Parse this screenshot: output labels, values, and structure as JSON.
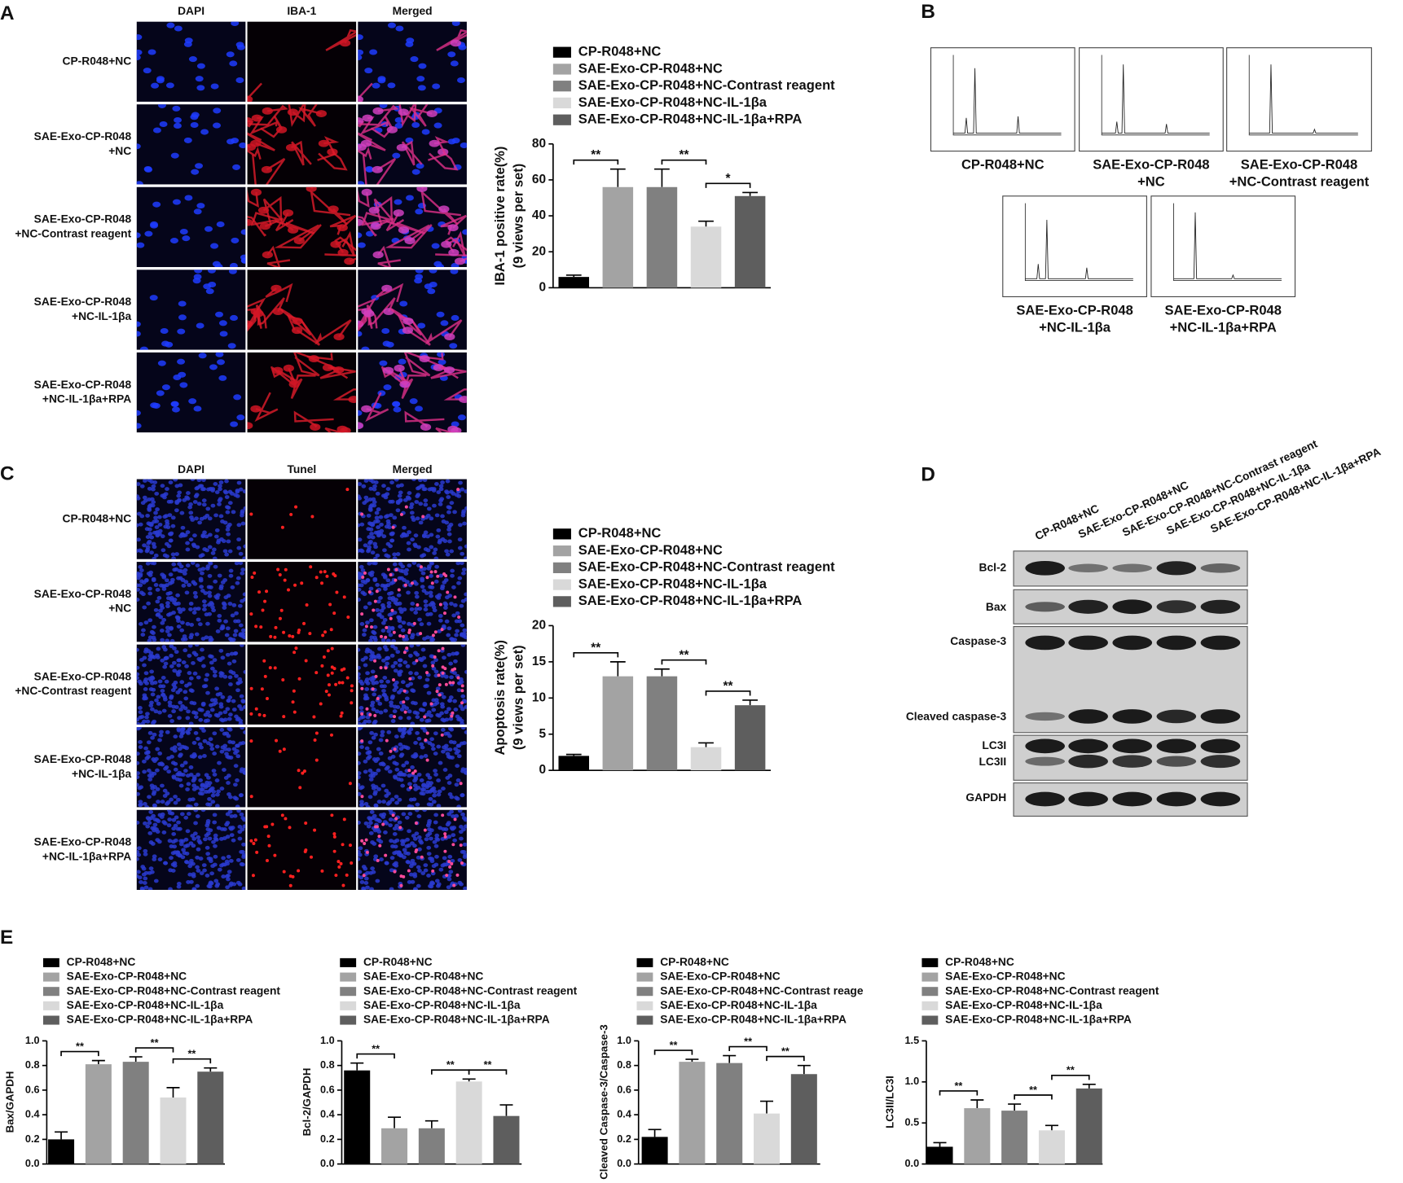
{
  "panel_labels": [
    "A",
    "B",
    "C",
    "D",
    "E"
  ],
  "panel_a": {
    "columns": [
      "DAPI",
      "IBA-1",
      "Merged"
    ],
    "rows": [
      [
        "CP-R048+NC"
      ],
      [
        "SAE-Exo-CP-R048",
        "+NC"
      ],
      [
        "SAE-Exo-CP-R048",
        "+NC-Contrast reagent"
      ],
      [
        "SAE-Exo-CP-R048",
        "+NC-IL-1βa"
      ],
      [
        "SAE-Exo-CP-R048",
        "+NC-IL-1βa+RPA"
      ]
    ]
  },
  "panel_b": {
    "labels": [
      [
        "CP-R048+NC"
      ],
      [
        "SAE-Exo-CP-R048",
        "+NC"
      ],
      [
        "SAE-Exo-CP-R048",
        "+NC-Contrast reagent"
      ],
      [
        "SAE-Exo-CP-R048",
        "+NC-IL-1βa"
      ],
      [
        "SAE-Exo-CP-R048",
        "+NC-IL-1βa+RPA"
      ]
    ]
  },
  "panel_c": {
    "columns": [
      "DAPI",
      "Tunel",
      "Merged"
    ],
    "rows": [
      [
        "CP-R048+NC"
      ],
      [
        "SAE-Exo-CP-R048",
        "+NC"
      ],
      [
        "SAE-Exo-CP-R048",
        "+NC-Contrast reagent"
      ],
      [
        "SAE-Exo-CP-R048",
        "+NC-IL-1βa"
      ],
      [
        "SAE-Exo-CP-R048",
        "+NC-IL-1βa+RPA"
      ]
    ]
  },
  "panel_d": {
    "lanes": [
      "CP-R048+NC",
      "SAE-Exo-CP-R048+NC",
      "SAE-Exo-CP-R048+NC-Contrast reagent",
      "SAE-Exo-CP-R048+NC-IL-1βa",
      "SAE-Exo-CP-R048+NC-IL-1βa+RPA"
    ],
    "bands": [
      "Bcl-2",
      "Bax",
      "Caspase-3",
      "Cleaved caspase-3",
      "LC3I",
      "LC3II",
      "GAPDH"
    ]
  },
  "chart_data": [
    {
      "type": "bar",
      "y_label": [
        "IBA-1 positive rate(%)",
        "(9 views per set)"
      ],
      "ylim": [
        0,
        80
      ],
      "yticks": [
        0,
        20,
        40,
        60,
        80
      ],
      "series": [
        {
          "name": "CP-R048+NC",
          "color": "#000000",
          "values": [
            6
          ],
          "errors": [
            1
          ]
        },
        {
          "name": "SAE-Exo-CP-R048+NC",
          "color": "#a3a3a3",
          "values": [
            56
          ],
          "errors": [
            10
          ]
        },
        {
          "name": "SAE-Exo-CP-R048+NC-Contrast reagent",
          "color": "#808080",
          "values": [
            56
          ],
          "errors": [
            10
          ]
        },
        {
          "name": "SAE-Exo-CP-R048+NC-IL-1βa",
          "color": "#d9d9d9",
          "values": [
            34
          ],
          "errors": [
            3
          ]
        },
        {
          "name": "SAE-Exo-CP-R048+NC-IL-1βa+RPA",
          "color": "#5e5e5e",
          "values": [
            51
          ],
          "errors": [
            2
          ]
        }
      ],
      "annotations": [
        "**",
        "**",
        "*"
      ]
    },
    {
      "type": "bar",
      "y_label": [
        "Apoptosis rate(%)",
        "(9 views per set)"
      ],
      "ylim": [
        0,
        20
      ],
      "yticks": [
        0,
        5,
        10,
        15,
        20
      ],
      "series": [
        {
          "name": "CP-R048+NC",
          "color": "#000000",
          "values": [
            2
          ],
          "errors": [
            0.2
          ]
        },
        {
          "name": "SAE-Exo-CP-R048+NC",
          "color": "#a3a3a3",
          "values": [
            13
          ],
          "errors": [
            2
          ]
        },
        {
          "name": "SAE-Exo-CP-R048+NC-Contrast reagent",
          "color": "#808080",
          "values": [
            13
          ],
          "errors": [
            1
          ]
        },
        {
          "name": "SAE-Exo-CP-R048+NC-IL-1βa",
          "color": "#d9d9d9",
          "values": [
            3.2
          ],
          "errors": [
            0.6
          ]
        },
        {
          "name": "SAE-Exo-CP-R048+NC-IL-1βa+RPA",
          "color": "#5e5e5e",
          "values": [
            9
          ],
          "errors": [
            0.7
          ]
        }
      ],
      "annotations": [
        "**",
        "**",
        "**"
      ]
    },
    {
      "type": "bar",
      "y_label": [
        "Bax/GAPDH"
      ],
      "ylim": [
        0,
        1
      ],
      "yticks": [
        {
          "value": 0,
          "label": "0.0"
        },
        0.2,
        0.4,
        0.6,
        0.8,
        {
          "value": 1,
          "label": "1.0"
        }
      ],
      "series": [
        {
          "name": "CP-R048+NC",
          "color": "#000000",
          "values": [
            0.2
          ],
          "errors": [
            0.06
          ]
        },
        {
          "name": "SAE-Exo-CP-R048+NC",
          "color": "#a3a3a3",
          "values": [
            0.81
          ],
          "errors": [
            0.03
          ]
        },
        {
          "name": "SAE-Exo-CP-R048+NC-Contrast reagent",
          "color": "#808080",
          "values": [
            0.83
          ],
          "errors": [
            0.04
          ]
        },
        {
          "name": "SAE-Exo-CP-R048+NC-IL-1βa",
          "color": "#d9d9d9",
          "values": [
            0.54
          ],
          "errors": [
            0.08
          ]
        },
        {
          "name": "SAE-Exo-CP-R048+NC-IL-1βa+RPA",
          "color": "#5e5e5e",
          "values": [
            0.75
          ],
          "errors": [
            0.03
          ]
        }
      ],
      "annotations": [
        "**",
        "**",
        "**"
      ]
    },
    {
      "type": "bar",
      "y_label": [
        "Bcl-2/GAPDH"
      ],
      "ylim": [
        0,
        1
      ],
      "yticks": [
        {
          "value": 0,
          "label": "0.0"
        },
        0.2,
        0.4,
        0.6,
        0.8,
        {
          "value": 1,
          "label": "1.0"
        }
      ],
      "series": [
        {
          "name": "CP-R048+NC",
          "color": "#000000",
          "values": [
            0.76
          ],
          "errors": [
            0.06
          ]
        },
        {
          "name": "SAE-Exo-CP-R048+NC",
          "color": "#a3a3a3",
          "values": [
            0.29
          ],
          "errors": [
            0.09
          ]
        },
        {
          "name": "SAE-Exo-CP-R048+NC-Contrast reagent",
          "color": "#808080",
          "values": [
            0.29
          ],
          "errors": [
            0.06
          ]
        },
        {
          "name": "SAE-Exo-CP-R048+NC-IL-1βa",
          "color": "#d9d9d9",
          "values": [
            0.67
          ],
          "errors": [
            0.02
          ]
        },
        {
          "name": "SAE-Exo-CP-R048+NC-IL-1βa+RPA",
          "color": "#5e5e5e",
          "values": [
            0.39
          ],
          "errors": [
            0.09
          ]
        }
      ],
      "annotations": [
        "**",
        "**",
        "**"
      ]
    },
    {
      "type": "bar",
      "y_label": [
        "Cleaved Caspase-3/Caspase-3"
      ],
      "ylim": [
        0,
        1
      ],
      "yticks": [
        {
          "value": 0,
          "label": "0.0"
        },
        0.2,
        0.4,
        0.6,
        0.8,
        {
          "value": 1,
          "label": "1.0"
        }
      ],
      "series": [
        {
          "name": "CP-R048+NC",
          "color": "#000000",
          "values": [
            0.22
          ],
          "errors": [
            0.06
          ]
        },
        {
          "name": "SAE-Exo-CP-R048+NC",
          "color": "#a3a3a3",
          "values": [
            0.83
          ],
          "errors": [
            0.02
          ]
        },
        {
          "name": "SAE-Exo-CP-R048+NC-Contrast reage",
          "color": "#808080",
          "values": [
            0.82
          ],
          "errors": [
            0.06
          ]
        },
        {
          "name": "SAE-Exo-CP-R048+NC-IL-1βa",
          "color": "#d9d9d9",
          "values": [
            0.41
          ],
          "errors": [
            0.1
          ]
        },
        {
          "name": "SAE-Exo-CP-R048+NC-IL-1βa+RPA",
          "color": "#5e5e5e",
          "values": [
            0.73
          ],
          "errors": [
            0.07
          ]
        }
      ],
      "annotations": [
        "**",
        "**",
        "**"
      ]
    },
    {
      "type": "bar",
      "y_label": [
        "LC3II/LC3I"
      ],
      "ylim": [
        0,
        1.5
      ],
      "yticks": [
        {
          "value": 0,
          "label": "0.0"
        },
        0.5,
        {
          "value": 1,
          "label": "1.0"
        },
        1.5
      ],
      "series": [
        {
          "name": "CP-R048+NC",
          "color": "#000000",
          "values": [
            0.21
          ],
          "errors": [
            0.05
          ]
        },
        {
          "name": "SAE-Exo-CP-R048+NC",
          "color": "#a3a3a3",
          "values": [
            0.68
          ],
          "errors": [
            0.1
          ]
        },
        {
          "name": "SAE-Exo-CP-R048+NC-Contrast reagent",
          "color": "#808080",
          "values": [
            0.65
          ],
          "errors": [
            0.08
          ]
        },
        {
          "name": "SAE-Exo-CP-R048+NC-IL-1βa",
          "color": "#d9d9d9",
          "values": [
            0.41
          ],
          "errors": [
            0.06
          ]
        },
        {
          "name": "SAE-Exo-CP-R048+NC-IL-1βa+RPA",
          "color": "#5e5e5e",
          "values": [
            0.92
          ],
          "errors": [
            0.05
          ]
        }
      ],
      "annotations": [
        "**",
        "**",
        "**"
      ]
    }
  ]
}
